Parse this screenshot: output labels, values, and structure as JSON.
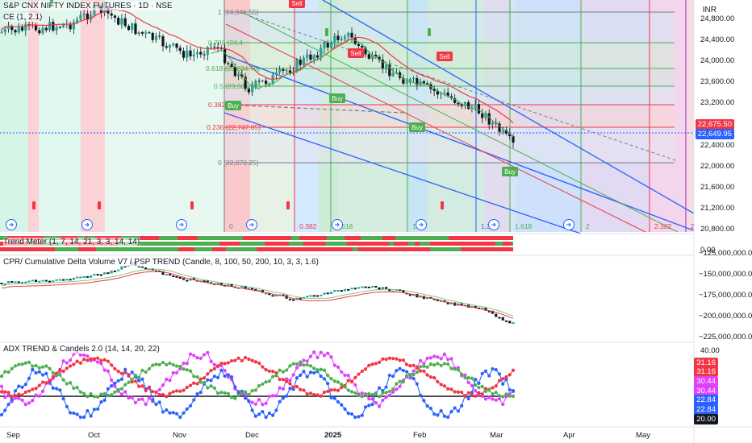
{
  "main": {
    "title": "S&P CNX NIFTY INDEX FUTURES · 1D · NSE",
    "sub": "CE (1, 2.1)",
    "currency": "INR",
    "price_ticks": [
      "24,800.00",
      "24,400.00",
      "24,000.00",
      "23,600.00",
      "23,200.00",
      "22,400.00",
      "22,000.00",
      "21,600.00",
      "21,200.00",
      "20,800.00"
    ],
    "last_price": "22,649.95",
    "mark_price": "22,675.50",
    "fib": [
      "1 (24,941.55)",
      "0.786 (24,4",
      "0.618 (23,834.70)",
      "0.5 (23,505.90)",
      "0.382 (23,",
      "0.236 (22,747.85)",
      "0 (22,070.25)"
    ],
    "fib_time": [
      "0",
      "0.382",
      "0.618",
      "1",
      "1.382",
      "1.618",
      "2",
      "2.382",
      "2."
    ],
    "signals": [
      "Sell",
      "Sell",
      "Sell",
      "Buy",
      "Buy",
      "Buy",
      "Buy"
    ],
    "last_price_value": 22649.95,
    "mark_price_value": 22675.5,
    "fib_values": [
      24941.55,
      24400,
      23834.7,
      23505.9,
      23200,
      22747.85,
      22070.25
    ]
  },
  "trend_meter": {
    "title": "Trend Meter (1, 7, 14, 21, 3, 3, 14, 14)",
    "axis": "0.00"
  },
  "cpr": {
    "title": "CPR/ Cumulative Delta Volume V7 / PSP TREND (Candle, 8, 100, 50, 200, 10, 3, 3, 1.6)",
    "ticks": [
      "−125,000,000.00",
      "−150,000,000.00",
      "−175,000,000.00",
      "−200,000,000.00",
      "−225,000,000.00"
    ]
  },
  "adx": {
    "title": "ADX TREND  & Candels 2.0 (14, 14, 20, 22)",
    "ticks": [
      "40.00"
    ],
    "tags": [
      "31.16",
      "31.16",
      "30.44",
      "30.44",
      "22.84",
      "22.84",
      "20.00"
    ],
    "tag_colors": [
      "#f23645",
      "#f23645",
      "#e040fb",
      "#e040fb",
      "#2962ff",
      "#2962ff",
      "#131722"
    ]
  },
  "time_axis": [
    "Sep",
    "Oct",
    "Nov",
    "Dec",
    "2025",
    "Feb",
    "Mar",
    "Apr",
    "May"
  ],
  "colors": {
    "up": "#26a69a",
    "down": "#ef5350",
    "blue": "#2962ff",
    "green": "#4caf50",
    "magenta": "#e040fb",
    "red": "#f23645"
  }
}
